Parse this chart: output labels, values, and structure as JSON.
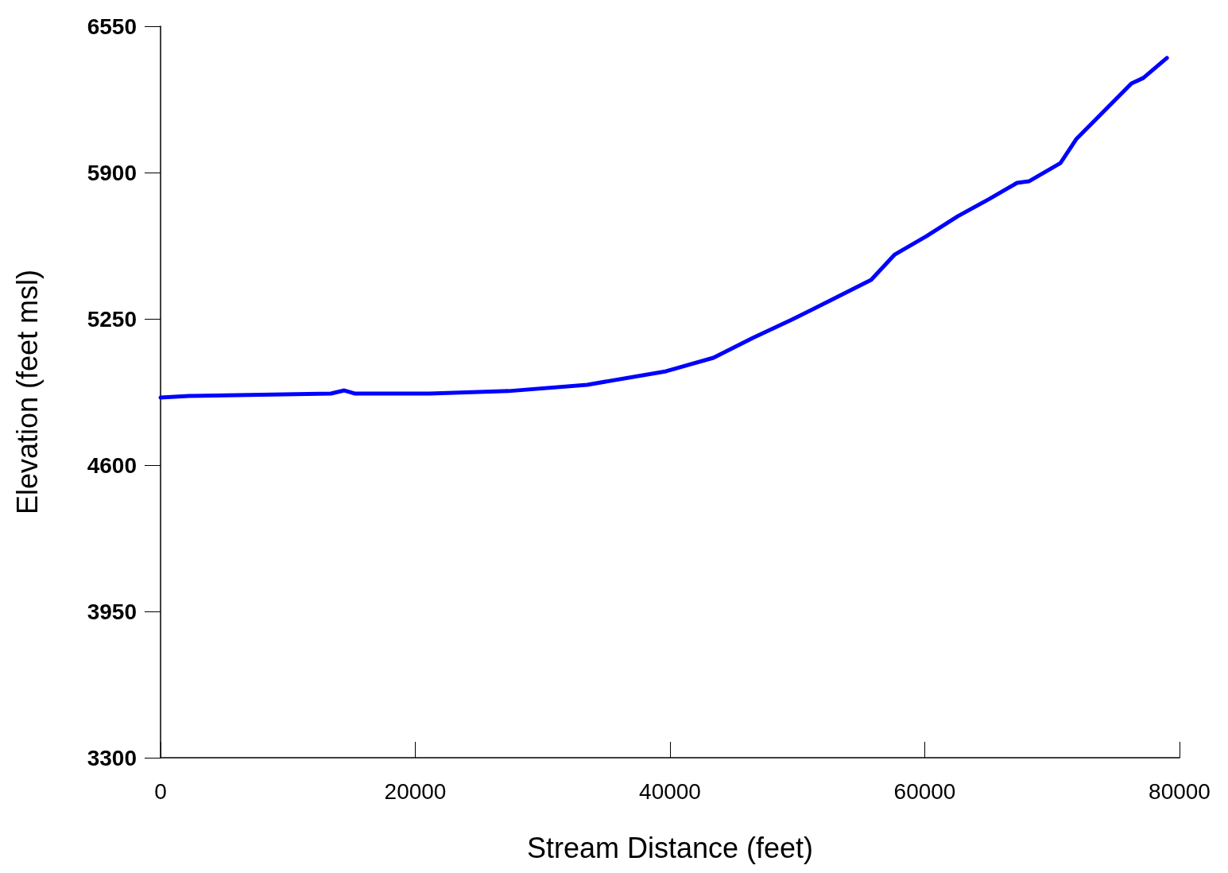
{
  "chart_data": {
    "type": "line",
    "xlabel": "Stream Distance (feet)",
    "ylabel": "Elevation (feet msl)",
    "xlim": [
      0,
      80000
    ],
    "xticks": [
      0,
      20000,
      40000,
      60000,
      80000
    ],
    "ylim": [
      3300,
      6550
    ],
    "yticks": [
      3300,
      3950,
      4600,
      5250,
      5900,
      6550
    ],
    "grid": false,
    "marker": "none",
    "line_style": "solid",
    "series": [
      {
        "color": "#0000ff",
        "x": [
          0,
          2229,
          13375,
          14427,
          15232,
          21115,
          27307,
          33498,
          39690,
          43406,
          46502,
          49598,
          52693,
          55789,
          57647,
          60124,
          62601,
          65077,
          67245,
          68173,
          70650,
          71889,
          74365,
          76223,
          77152,
          79009
        ],
        "values": [
          4900,
          4907,
          4918,
          4932,
          4918,
          4918,
          4929,
          4957,
          5017,
          5077,
          5165,
          5247,
          5335,
          5423,
          5536,
          5617,
          5706,
          5783,
          5854,
          5861,
          5942,
          6048,
          6190,
          6296,
          6320,
          6409
        ]
      }
    ]
  }
}
